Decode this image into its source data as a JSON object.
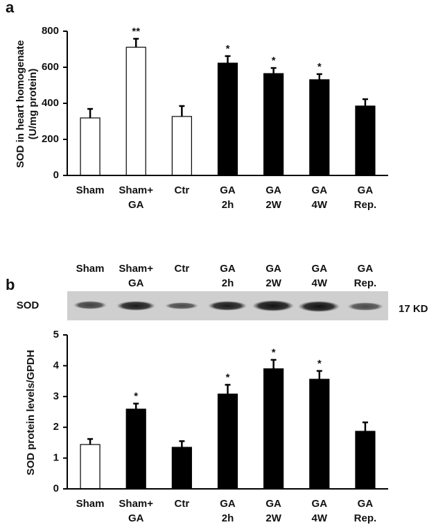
{
  "chart_data": [
    {
      "type": "bar",
      "panel": "a",
      "ylabel": [
        "SOD in heart homogenate",
        "(U/mg protein)"
      ],
      "categories": [
        [
          "Sham"
        ],
        [
          "Sham+",
          "GA"
        ],
        [
          "Ctr"
        ],
        [
          "GA",
          "2h"
        ],
        [
          "GA",
          "2W"
        ],
        [
          "GA",
          "4W"
        ],
        [
          "GA",
          "Rep."
        ]
      ],
      "values": [
        319,
        711,
        327,
        623,
        565,
        531,
        385
      ],
      "errors": [
        50,
        47,
        58,
        39,
        31,
        31,
        38
      ],
      "colors": [
        "#ffffff",
        "#ffffff",
        "#ffffff",
        "#000000",
        "#000000",
        "#000000",
        "#000000"
      ],
      "annotations": [
        null,
        "**",
        null,
        "*",
        "*",
        "*",
        null
      ],
      "ylim": [
        0,
        800
      ],
      "yticks": [
        0,
        200,
        400,
        600,
        800
      ]
    },
    {
      "type": "bar",
      "panel": "b",
      "ylabel": [
        "SOD protein levels/GPDH"
      ],
      "categories": [
        [
          "Sham"
        ],
        [
          "Sham+",
          "GA"
        ],
        [
          "Ctr"
        ],
        [
          "GA",
          "2h"
        ],
        [
          "GA",
          "2W"
        ],
        [
          "GA",
          "4W"
        ],
        [
          "GA",
          "Rep."
        ]
      ],
      "values": [
        1.44,
        2.59,
        1.35,
        3.08,
        3.9,
        3.56,
        1.87
      ],
      "errors": [
        0.18,
        0.18,
        0.2,
        0.3,
        0.29,
        0.27,
        0.29
      ],
      "colors": [
        "#ffffff",
        "#000000",
        "#000000",
        "#000000",
        "#000000",
        "#000000",
        "#000000"
      ],
      "annotations": [
        null,
        "*",
        null,
        "*",
        "*",
        "*",
        null
      ],
      "ylim": [
        0,
        5
      ],
      "yticks": [
        0,
        1,
        2,
        3,
        4,
        5
      ]
    }
  ],
  "blot": {
    "label": "SOD",
    "size": "17 KD",
    "lanes": [
      [
        "Sham"
      ],
      [
        "Sham+",
        "GA"
      ],
      [
        "Ctr"
      ],
      [
        "GA",
        "2h"
      ],
      [
        "GA",
        "2W"
      ],
      [
        "GA",
        "4W"
      ],
      [
        "GA",
        "Rep."
      ]
    ]
  }
}
